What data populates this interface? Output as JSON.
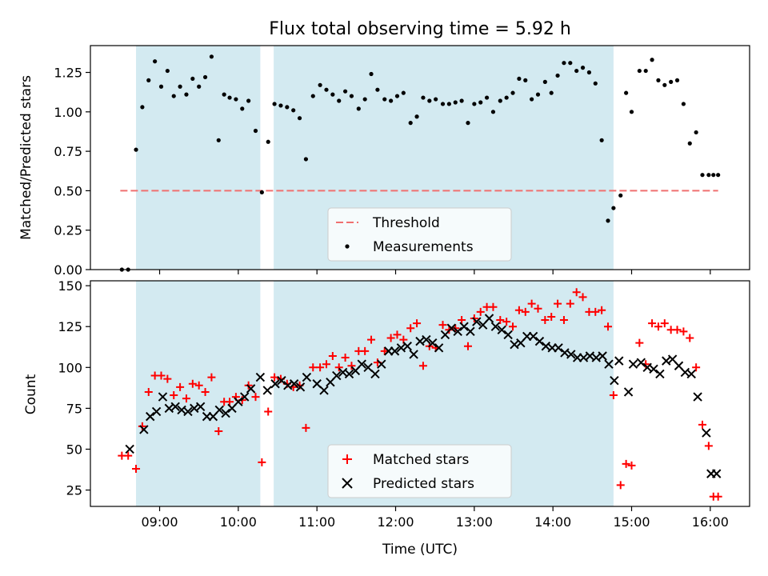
{
  "chart_data": {
    "title": "Flux total observing time = 5.92 h",
    "xlabel": "Time (UTC)",
    "x_ticks": [
      "09:00",
      "10:00",
      "11:00",
      "12:00",
      "13:00",
      "14:00",
      "15:00",
      "16:00"
    ],
    "x_range_hours": [
      8.12,
      16.5
    ],
    "shaded_spans_hours": [
      [
        8.7,
        10.28
      ],
      [
        10.45,
        14.77
      ]
    ],
    "shade_color": "#d3eaf1",
    "panels": [
      {
        "type": "scatter",
        "ylabel": "Matched/Predicted stars",
        "ylim": [
          0,
          1.42
        ],
        "y_ticks": [
          "0.00",
          "0.25",
          "0.50",
          "0.75",
          "1.00",
          "1.25"
        ],
        "threshold": {
          "name": "Threshold",
          "y": 0.5,
          "x_range_hours": [
            8.5,
            16.1
          ],
          "color": "#f07070"
        },
        "series": [
          {
            "name": "Measurements",
            "color": "#000000",
            "marker": "dot",
            "x": [
              8.52,
              8.6,
              8.7,
              8.78,
              8.86,
              8.94,
              9.02,
              9.1,
              9.18,
              9.26,
              9.34,
              9.42,
              9.5,
              9.58,
              9.66,
              9.75,
              9.82,
              9.89,
              9.97,
              10.05,
              10.13,
              10.22,
              10.3,
              10.38,
              10.46,
              10.54,
              10.62,
              10.7,
              10.78,
              10.86,
              10.95,
              11.04,
              11.12,
              11.2,
              11.28,
              11.36,
              11.44,
              11.53,
              11.61,
              11.69,
              11.77,
              11.86,
              11.94,
              12.02,
              12.1,
              12.19,
              12.27,
              12.35,
              12.43,
              12.51,
              12.6,
              12.68,
              12.76,
              12.84,
              12.92,
              13.0,
              13.08,
              13.16,
              13.24,
              13.33,
              13.41,
              13.49,
              13.57,
              13.65,
              13.73,
              13.81,
              13.9,
              13.98,
              14.06,
              14.14,
              14.22,
              14.3,
              14.38,
              14.46,
              14.54,
              14.62,
              14.7,
              14.77,
              14.86,
              14.93,
              15.0,
              15.1,
              15.18,
              15.26,
              15.34,
              15.42,
              15.5,
              15.58,
              15.66,
              15.74,
              15.82,
              15.9,
              15.98,
              16.04,
              16.1
            ],
            "y": [
              0.0,
              0.0,
              0.76,
              1.03,
              1.2,
              1.32,
              1.16,
              1.26,
              1.1,
              1.16,
              1.11,
              1.21,
              1.16,
              1.22,
              1.35,
              0.82,
              1.11,
              1.09,
              1.08,
              1.02,
              1.07,
              0.88,
              0.49,
              0.81,
              1.05,
              1.04,
              1.03,
              1.01,
              0.96,
              0.7,
              1.1,
              1.17,
              1.14,
              1.11,
              1.07,
              1.13,
              1.1,
              1.02,
              1.08,
              1.24,
              1.14,
              1.08,
              1.07,
              1.1,
              1.12,
              0.93,
              0.97,
              1.09,
              1.07,
              1.08,
              1.05,
              1.05,
              1.06,
              1.07,
              0.93,
              1.05,
              1.06,
              1.09,
              1.0,
              1.07,
              1.09,
              1.12,
              1.21,
              1.2,
              1.08,
              1.11,
              1.19,
              1.12,
              1.23,
              1.31,
              1.31,
              1.26,
              1.28,
              1.25,
              1.18,
              0.82,
              0.31,
              0.39,
              0.47,
              1.12,
              1.0,
              1.26,
              1.26,
              1.33,
              1.2,
              1.17,
              1.19,
              1.2,
              1.05,
              0.8,
              0.87,
              0.6,
              0.6,
              0.6,
              0.6
            ]
          }
        ],
        "legend": {
          "location": "lower-center",
          "entries": [
            "Threshold",
            "Measurements"
          ]
        }
      },
      {
        "type": "scatter",
        "ylabel": "Count",
        "ylim": [
          15,
          153
        ],
        "y_ticks": [
          "25",
          "50",
          "75",
          "100",
          "125",
          "150"
        ],
        "series": [
          {
            "name": "Matched stars",
            "color": "#ff0000",
            "marker": "plus",
            "x": [
              8.52,
              8.6,
              8.7,
              8.78,
              8.86,
              8.94,
              9.02,
              9.1,
              9.18,
              9.26,
              9.34,
              9.42,
              9.5,
              9.58,
              9.66,
              9.75,
              9.82,
              9.89,
              9.97,
              10.05,
              10.13,
              10.22,
              10.3,
              10.38,
              10.46,
              10.54,
              10.62,
              10.7,
              10.78,
              10.86,
              10.95,
              11.04,
              11.12,
              11.2,
              11.28,
              11.36,
              11.44,
              11.53,
              11.61,
              11.69,
              11.77,
              11.86,
              11.94,
              12.02,
              12.1,
              12.19,
              12.27,
              12.35,
              12.43,
              12.51,
              12.6,
              12.68,
              12.76,
              12.84,
              12.92,
              13.0,
              13.08,
              13.16,
              13.24,
              13.33,
              13.41,
              13.49,
              13.57,
              13.65,
              13.73,
              13.81,
              13.9,
              13.98,
              14.06,
              14.14,
              14.22,
              14.3,
              14.38,
              14.46,
              14.54,
              14.62,
              14.7,
              14.77,
              14.86,
              14.93,
              15.0,
              15.1,
              15.18,
              15.26,
              15.34,
              15.42,
              15.5,
              15.58,
              15.66,
              15.74,
              15.82,
              15.9,
              15.98,
              16.04,
              16.1
            ],
            "y": [
              46,
              46,
              38,
              64,
              85,
              95,
              95,
              93,
              83,
              88,
              81,
              90,
              89,
              85,
              94,
              61,
              79,
              79,
              82,
              80,
              89,
              82,
              42,
              73,
              94,
              93,
              90,
              88,
              89,
              63,
              100,
              100,
              102,
              107,
              100,
              106,
              101,
              110,
              110,
              117,
              103,
              110,
              118,
              120,
              117,
              124,
              127,
              101,
              113,
              112,
              126,
              123,
              124,
              129,
              113,
              130,
              134,
              137,
              137,
              129,
              128,
              125,
              135,
              134,
              139,
              136,
              129,
              131,
              139,
              129,
              139,
              146,
              143,
              134,
              134,
              135,
              125,
              83,
              28,
              41,
              40,
              115,
              102,
              127,
              125,
              127,
              123,
              123,
              122,
              118,
              100,
              65,
              52,
              21,
              21
            ]
          },
          {
            "name": "Predicted stars",
            "color": "#000000",
            "marker": "x",
            "x": [
              8.62,
              8.8,
              8.88,
              8.96,
              9.04,
              9.12,
              9.2,
              9.28,
              9.36,
              9.44,
              9.52,
              9.6,
              9.68,
              9.76,
              9.84,
              9.92,
              10.0,
              10.08,
              10.16,
              10.28,
              10.37,
              10.47,
              10.55,
              10.63,
              10.71,
              10.79,
              10.87,
              11.0,
              11.09,
              11.17,
              11.25,
              11.33,
              11.41,
              11.49,
              11.57,
              11.65,
              11.74,
              11.82,
              11.91,
              11.99,
              12.07,
              12.15,
              12.23,
              12.31,
              12.39,
              12.47,
              12.55,
              12.63,
              12.71,
              12.79,
              12.87,
              12.95,
              13.03,
              13.11,
              13.19,
              13.27,
              13.35,
              13.43,
              13.51,
              13.59,
              13.67,
              13.75,
              13.83,
              13.91,
              13.99,
              14.07,
              14.15,
              14.23,
              14.31,
              14.39,
              14.47,
              14.55,
              14.63,
              14.71,
              14.78,
              14.84,
              14.96,
              15.02,
              15.12,
              15.2,
              15.28,
              15.36,
              15.44,
              15.52,
              15.6,
              15.68,
              15.76,
              15.84,
              15.95,
              16.01,
              16.08
            ],
            "y": [
              50,
              62,
              70,
              73,
              82,
              75,
              76,
              74,
              73,
              75,
              76,
              70,
              70,
              74,
              72,
              75,
              79,
              82,
              87,
              94,
              86,
              90,
              92,
              89,
              90,
              88,
              94,
              90,
              86,
              91,
              95,
              97,
              96,
              98,
              102,
              100,
              96,
              102,
              110,
              110,
              112,
              113,
              108,
              116,
              117,
              115,
              112,
              120,
              124,
              122,
              125,
              122,
              128,
              126,
              130,
              125,
              123,
              120,
              114,
              115,
              119,
              119,
              116,
              113,
              112,
              112,
              109,
              108,
              106,
              106,
              107,
              106,
              107,
              102,
              92,
              104,
              85,
              102,
              103,
              100,
              99,
              96,
              104,
              105,
              101,
              97,
              96,
              82,
              60,
              35,
              35
            ]
          }
        ],
        "legend": {
          "location": "lower-center",
          "entries": [
            "Matched stars",
            "Predicted stars"
          ]
        }
      }
    ]
  }
}
